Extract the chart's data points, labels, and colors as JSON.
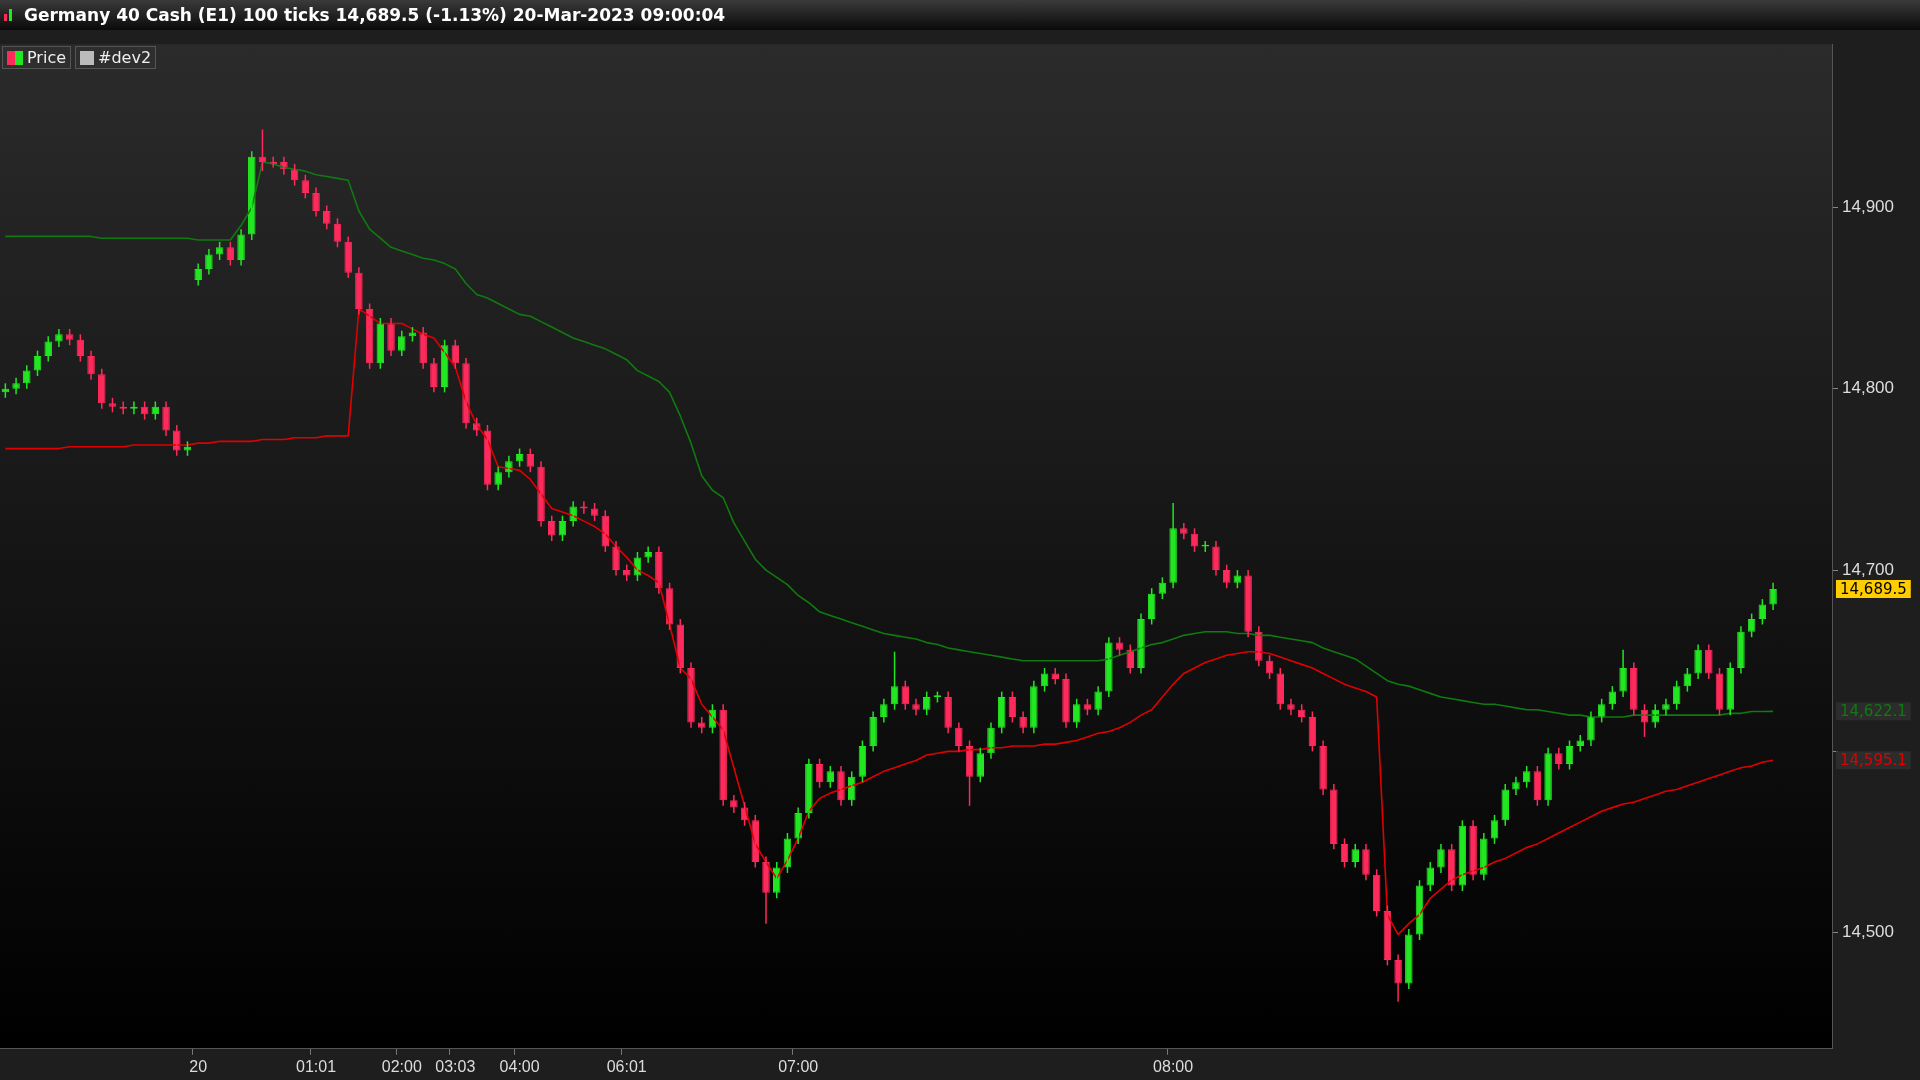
{
  "chart_data": {
    "type": "candlestick",
    "title": "Germany 40 Cash (E1) 100 ticks 14,689.5 (-1.13%) 20-Mar-2023 09:00:04",
    "categories": [
      null,
      null,
      null,
      null,
      null,
      null,
      null,
      null,
      null,
      null,
      null,
      null,
      null,
      null,
      null,
      null,
      null,
      null,
      "20",
      null,
      null,
      null,
      null,
      null,
      null,
      null,
      null,
      null,
      null,
      "01:01",
      null,
      null,
      null,
      null,
      null,
      null,
      null,
      "02:00",
      null,
      null,
      null,
      null,
      "03:03",
      null,
      null,
      null,
      null,
      null,
      "04:00",
      null,
      null,
      null,
      null,
      null,
      null,
      null,
      null,
      null,
      "06:01",
      null,
      null,
      null,
      null,
      null,
      null,
      null,
      null,
      null,
      null,
      null,
      null,
      null,
      null,
      null,
      "07:00",
      null,
      null,
      null,
      null,
      null,
      null,
      null,
      null,
      null,
      null,
      null,
      null,
      null,
      null,
      null,
      null,
      null,
      null,
      null,
      null,
      null,
      null,
      null,
      null,
      null,
      null,
      null,
      null,
      null,
      null,
      null,
      null,
      null,
      null,
      "08:00",
      null,
      null,
      null,
      null,
      null,
      null,
      null,
      null,
      null,
      null,
      null,
      null,
      null,
      null,
      null,
      null,
      null,
      null,
      null,
      null,
      null,
      null,
      null,
      null,
      null,
      null,
      null,
      null,
      null,
      null,
      null,
      null,
      null,
      null,
      null,
      null,
      null,
      null,
      null,
      null,
      null,
      null,
      null,
      null,
      null,
      null,
      null,
      null,
      null,
      null,
      null,
      null,
      null,
      null,
      null,
      null,
      null,
      null,
      null,
      null,
      null
    ],
    "series": [
      {
        "name": "Price",
        "ohlc": [
          [
            14798,
            14803,
            14795,
            14800
          ],
          [
            14800,
            14806,
            14797,
            14803
          ],
          [
            14803,
            14813,
            14800,
            14810
          ],
          [
            14810,
            14821,
            14807,
            14818
          ],
          [
            14818,
            14829,
            14815,
            14826
          ],
          [
            14826,
            14833,
            14823,
            14830
          ],
          [
            14830,
            14833,
            14824,
            14827
          ],
          [
            14827,
            14830,
            14815,
            14818
          ],
          [
            14818,
            14821,
            14805,
            14808
          ],
          [
            14808,
            14811,
            14789,
            14792
          ],
          [
            14792,
            14795,
            14787,
            14790
          ],
          [
            14790,
            14793,
            14786,
            14789
          ],
          [
            14789,
            14793,
            14786,
            14790
          ],
          [
            14790,
            14793,
            14783,
            14786
          ],
          [
            14786,
            14793,
            14783,
            14790
          ],
          [
            14790,
            14793,
            14774,
            14777
          ],
          [
            14777,
            14780,
            14763,
            14766
          ],
          [
            14766,
            14771,
            14763,
            14768
          ],
          [
            14860,
            14869,
            14857,
            14866
          ],
          [
            14866,
            14877,
            14863,
            14874
          ],
          [
            14874,
            14881,
            14871,
            14878
          ],
          [
            14878,
            14881,
            14868,
            14871
          ],
          [
            14871,
            14888,
            14868,
            14885
          ],
          [
            14885,
            14931,
            14882,
            14928
          ],
          [
            14928,
            14943,
            14920,
            14925
          ],
          [
            14925,
            14928,
            14922,
            14924
          ],
          [
            14925,
            14928,
            14918,
            14921
          ],
          [
            14921,
            14924,
            14912,
            14915
          ],
          [
            14915,
            14918,
            14905,
            14908
          ],
          [
            14908,
            14911,
            14895,
            14898
          ],
          [
            14898,
            14901,
            14888,
            14891
          ],
          [
            14891,
            14894,
            14878,
            14881
          ],
          [
            14881,
            14884,
            14861,
            14864
          ],
          [
            14864,
            14867,
            14841,
            14844
          ],
          [
            14844,
            14847,
            14811,
            14814
          ],
          [
            14814,
            14839,
            14811,
            14836
          ],
          [
            14836,
            14839,
            14818,
            14821
          ],
          [
            14821,
            14832,
            14818,
            14829
          ],
          [
            14829,
            14834,
            14826,
            14831
          ],
          [
            14831,
            14834,
            14811,
            14814
          ],
          [
            14814,
            14817,
            14798,
            14801
          ],
          [
            14801,
            14827,
            14798,
            14824
          ],
          [
            14824,
            14827,
            14811,
            14814
          ],
          [
            14814,
            14817,
            14778,
            14781
          ],
          [
            14781,
            14784,
            14774,
            14777
          ],
          [
            14777,
            14780,
            14744,
            14747
          ],
          [
            14747,
            14757,
            14744,
            14754
          ],
          [
            14754,
            14763,
            14751,
            14760
          ],
          [
            14760,
            14767,
            14757,
            14764
          ],
          [
            14764,
            14767,
            14754,
            14757
          ],
          [
            14757,
            14760,
            14724,
            14727
          ],
          [
            14727,
            14730,
            14716,
            14719
          ],
          [
            14719,
            14730,
            14716,
            14727
          ],
          [
            14727,
            14738,
            14724,
            14735
          ],
          [
            14735,
            14738,
            14731,
            14734
          ],
          [
            14734,
            14737,
            14727,
            14730
          ],
          [
            14730,
            14733,
            14710,
            14713
          ],
          [
            14713,
            14716,
            14697,
            14700
          ],
          [
            14700,
            14703,
            14694,
            14697
          ],
          [
            14697,
            14710,
            14694,
            14707
          ],
          [
            14707,
            14713,
            14704,
            14710
          ],
          [
            14710,
            14713,
            14687,
            14690
          ],
          [
            14690,
            14693,
            14667,
            14670
          ],
          [
            14670,
            14673,
            14643,
            14646
          ],
          [
            14646,
            14649,
            14613,
            14616
          ],
          [
            14616,
            14619,
            14610,
            14613
          ],
          [
            14613,
            14626,
            14610,
            14623
          ],
          [
            14623,
            14626,
            14570,
            14573
          ],
          [
            14573,
            14576,
            14566,
            14569
          ],
          [
            14569,
            14572,
            14559,
            14562
          ],
          [
            14562,
            14565,
            14536,
            14539
          ],
          [
            14539,
            14542,
            14505,
            14522
          ],
          [
            14522,
            14539,
            14519,
            14536
          ],
          [
            14536,
            14555,
            14533,
            14552
          ],
          [
            14552,
            14569,
            14549,
            14566
          ],
          [
            14566,
            14596,
            14563,
            14593
          ],
          [
            14593,
            14596,
            14580,
            14583
          ],
          [
            14583,
            14592,
            14580,
            14589
          ],
          [
            14589,
            14592,
            14570,
            14573
          ],
          [
            14573,
            14589,
            14570,
            14586
          ],
          [
            14586,
            14606,
            14583,
            14603
          ],
          [
            14603,
            14622,
            14600,
            14619
          ],
          [
            14619,
            14629,
            14616,
            14626
          ],
          [
            14626,
            14655,
            14623,
            14636
          ],
          [
            14636,
            14639,
            14623,
            14626
          ],
          [
            14626,
            14629,
            14620,
            14623
          ],
          [
            14623,
            14633,
            14620,
            14630
          ],
          [
            14630,
            14633,
            14627,
            14631
          ],
          [
            14630,
            14633,
            14610,
            14613
          ],
          [
            14613,
            14616,
            14600,
            14603
          ],
          [
            14603,
            14606,
            14570,
            14586
          ],
          [
            14586,
            14602,
            14583,
            14599
          ],
          [
            14599,
            14616,
            14596,
            14613
          ],
          [
            14613,
            14633,
            14610,
            14630
          ],
          [
            14630,
            14633,
            14616,
            14619
          ],
          [
            14619,
            14622,
            14610,
            14613
          ],
          [
            14613,
            14639,
            14610,
            14636
          ],
          [
            14636,
            14646,
            14633,
            14643
          ],
          [
            14643,
            14646,
            14637,
            14640
          ],
          [
            14640,
            14643,
            14613,
            14616
          ],
          [
            14616,
            14629,
            14613,
            14626
          ],
          [
            14626,
            14629,
            14620,
            14623
          ],
          [
            14623,
            14636,
            14620,
            14633
          ],
          [
            14633,
            14663,
            14630,
            14660
          ],
          [
            14660,
            14663,
            14653,
            14656
          ],
          [
            14656,
            14659,
            14643,
            14646
          ],
          [
            14646,
            14676,
            14643,
            14673
          ],
          [
            14673,
            14690,
            14670,
            14687
          ],
          [
            14687,
            14696,
            14684,
            14693
          ],
          [
            14693,
            14737,
            14690,
            14723
          ],
          [
            14723,
            14726,
            14717,
            14720
          ],
          [
            14720,
            14723,
            14710,
            14713
          ],
          [
            14713,
            14716,
            14710,
            14714
          ],
          [
            14713,
            14716,
            14697,
            14700
          ],
          [
            14700,
            14703,
            14690,
            14693
          ],
          [
            14693,
            14700,
            14690,
            14697
          ],
          [
            14697,
            14700,
            14663,
            14666
          ],
          [
            14666,
            14669,
            14647,
            14650
          ],
          [
            14650,
            14653,
            14640,
            14643
          ],
          [
            14643,
            14646,
            14623,
            14626
          ],
          [
            14626,
            14629,
            14620,
            14623
          ],
          [
            14623,
            14626,
            14616,
            14619
          ],
          [
            14619,
            14622,
            14600,
            14603
          ],
          [
            14603,
            14606,
            14576,
            14579
          ],
          [
            14579,
            14582,
            14546,
            14549
          ],
          [
            14549,
            14552,
            14536,
            14539
          ],
          [
            14539,
            14549,
            14536,
            14546
          ],
          [
            14546,
            14549,
            14529,
            14532
          ],
          [
            14532,
            14535,
            14509,
            14512
          ],
          [
            14512,
            14515,
            14482,
            14485
          ],
          [
            14485,
            14488,
            14462,
            14472
          ],
          [
            14472,
            14502,
            14469,
            14499
          ],
          [
            14499,
            14529,
            14496,
            14526
          ],
          [
            14526,
            14539,
            14523,
            14536
          ],
          [
            14536,
            14549,
            14533,
            14546
          ],
          [
            14546,
            14549,
            14523,
            14526
          ],
          [
            14526,
            14562,
            14523,
            14559
          ],
          [
            14559,
            14562,
            14529,
            14532
          ],
          [
            14532,
            14555,
            14529,
            14552
          ],
          [
            14552,
            14565,
            14549,
            14562
          ],
          [
            14562,
            14582,
            14559,
            14579
          ],
          [
            14579,
            14586,
            14576,
            14583
          ],
          [
            14583,
            14592,
            14580,
            14589
          ],
          [
            14589,
            14592,
            14570,
            14573
          ],
          [
            14573,
            14602,
            14570,
            14599
          ],
          [
            14599,
            14602,
            14590,
            14593
          ],
          [
            14593,
            14606,
            14590,
            14603
          ],
          [
            14603,
            14609,
            14600,
            14606
          ],
          [
            14606,
            14622,
            14603,
            14619
          ],
          [
            14619,
            14629,
            14616,
            14626
          ],
          [
            14626,
            14636,
            14623,
            14633
          ],
          [
            14633,
            14656,
            14630,
            14646
          ],
          [
            14646,
            14649,
            14620,
            14623
          ],
          [
            14623,
            14626,
            14608,
            14616
          ],
          [
            14616,
            14626,
            14613,
            14623
          ],
          [
            14623,
            14629,
            14620,
            14626
          ],
          [
            14626,
            14639,
            14623,
            14636
          ],
          [
            14636,
            14646,
            14633,
            14643
          ],
          [
            14643,
            14659,
            14640,
            14656
          ],
          [
            14656,
            14659,
            14640,
            14643
          ],
          [
            14643,
            14646,
            14620,
            14623
          ],
          [
            14623,
            14649,
            14620,
            14646
          ],
          [
            14646,
            14669,
            14643,
            14666
          ],
          [
            14666,
            14676,
            14663,
            14673
          ],
          [
            14673,
            14684,
            14670,
            14681
          ],
          [
            14681,
            14693,
            14678,
            14689.5
          ],
          null,
          null,
          null,
          null,
          null
        ]
      },
      {
        "type": "line",
        "color": "#0f7a0f",
        "values": [
          14884,
          14884,
          14884,
          14884,
          14884,
          14884,
          14884,
          14884,
          14884,
          14883,
          14883,
          14883,
          14883,
          14883,
          14883,
          14883,
          14883,
          14883,
          14882,
          14882,
          14882,
          14882,
          14890,
          14900,
          14925,
          14924,
          14922,
          14921,
          14920,
          14918,
          14917,
          14916,
          14915,
          14898,
          14888,
          14883,
          14878,
          14876,
          14874,
          14872,
          14871,
          14869,
          14866,
          14858,
          14852,
          14850,
          14847,
          14844,
          14841,
          14840,
          14837,
          14834,
          14831,
          14828,
          14826,
          14824,
          14822,
          14819,
          14816,
          14810,
          14807,
          14804,
          14798,
          14785,
          14770,
          14752,
          14744,
          14740,
          14726,
          14716,
          14706,
          14700,
          14696,
          14692,
          14686,
          14682,
          14677,
          14675,
          14673,
          14671,
          14669,
          14667,
          14665,
          14664,
          14663,
          14662,
          14660,
          14659,
          14657,
          14656,
          14655,
          14654,
          14653,
          14652,
          14651,
          14650,
          14650,
          14650,
          14650,
          14650,
          14650,
          14650,
          14650,
          14651,
          14653,
          14655,
          14657,
          14659,
          14660,
          14662,
          14664,
          14665,
          14666,
          14666,
          14666,
          14665,
          14665,
          14664,
          14664,
          14663,
          14662,
          14661,
          14660,
          14657,
          14655,
          14653,
          14651,
          14647,
          14643,
          14639,
          14637,
          14636,
          14634,
          14632,
          14630,
          14629,
          14628,
          14627,
          14626,
          14626,
          14625,
          14624,
          14623,
          14623,
          14622,
          14621,
          14620,
          14620,
          14619,
          14619,
          14619,
          14619,
          14620,
          14620,
          14620,
          14620,
          14620,
          14620,
          14620,
          14620,
          14620,
          14621,
          14621,
          14622,
          14622,
          14622.1,
          null,
          null,
          null,
          null,
          null
        ]
      },
      {
        "type": "line",
        "color": "#e00000",
        "values": [
          14767,
          14767,
          14767,
          14767,
          14767,
          14767,
          14768,
          14768,
          14768,
          14768,
          14768,
          14768,
          14769,
          14769,
          14769,
          14769,
          14769,
          14769,
          14770,
          14770,
          14771,
          14771,
          14771,
          14771,
          14772,
          14772,
          14772,
          14773,
          14773,
          14773,
          14774,
          14774,
          14774,
          14844,
          14840,
          14836,
          14836,
          14836,
          14833,
          14830,
          14828,
          14820,
          14812,
          14793,
          14780,
          14772,
          14757,
          14756,
          14755,
          14750,
          14742,
          14734,
          14732,
          14730,
          14727,
          14724,
          14720,
          14713,
          14707,
          14700,
          14697,
          14693,
          14670,
          14646,
          14640,
          14626,
          14619,
          14612,
          14591,
          14570,
          14549,
          14539,
          14530,
          14540,
          14552,
          14567,
          14574,
          14577,
          14579,
          14581,
          14583,
          14586,
          14589,
          14591,
          14593,
          14595,
          14598,
          14599,
          14600,
          14600,
          14601,
          14601,
          14602,
          14602,
          14603,
          14603,
          14603,
          14604,
          14604,
          14605,
          14606,
          14608,
          14610,
          14611,
          14613,
          14616,
          14620,
          14623,
          14630,
          14637,
          14643,
          14646,
          14649,
          14651,
          14653,
          14654,
          14655,
          14655,
          14654,
          14652,
          14650,
          14648,
          14646,
          14643,
          14640,
          14637,
          14635,
          14633,
          14630,
          14510,
          14499,
          14505,
          14510,
          14519,
          14524,
          14529,
          14532,
          14534,
          14536,
          14539,
          14541,
          14544,
          14547,
          14549,
          14552,
          14555,
          14558,
          14561,
          14564,
          14567,
          14569,
          14571,
          14572,
          14574,
          14576,
          14578,
          14579,
          14581,
          14583,
          14585,
          14587,
          14589,
          14591,
          14592,
          14594,
          14595.1,
          null,
          null,
          null,
          null,
          null
        ]
      }
    ],
    "ylim": [
      14436,
      14990
    ],
    "yticks": [
      {
        "value": 14500,
        "label": "14,500"
      },
      {
        "value": 14600,
        "label": null
      },
      {
        "value": 14700,
        "label": "14,700"
      },
      {
        "value": 14800,
        "label": "14,800"
      },
      {
        "value": 14900,
        "label": "14,900"
      }
    ],
    "legend": "top left",
    "annotations": [
      "#dev2",
      "14,689.5",
      "14,622.1",
      "14,595.1"
    ]
  }
}
